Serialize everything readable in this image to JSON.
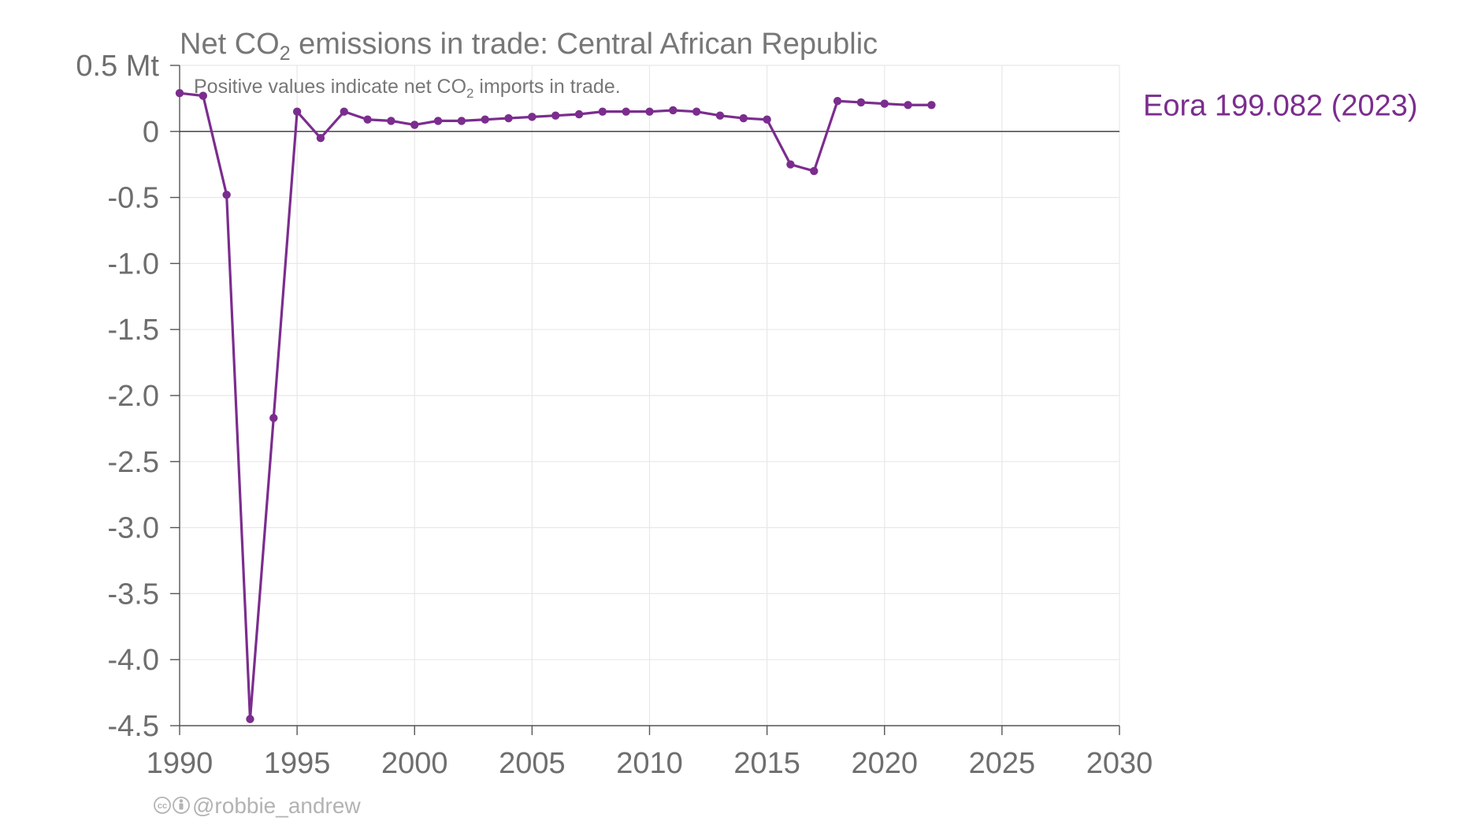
{
  "title": {
    "prefix": "Net CO",
    "subscript": "2",
    "suffix": " emissions in trade: Central African Republic"
  },
  "subtitle": {
    "prefix": "Positive values indicate net CO",
    "subscript": "2",
    "suffix": " imports in trade."
  },
  "credit": {
    "handle": "@robbie_andrew",
    "icons": [
      "cc-license-icon",
      "attribution-icon"
    ]
  },
  "colors": {
    "series": "#7b2d8e",
    "zero_line": "#333333",
    "grid": "#e8e8e8",
    "text": "#777777"
  },
  "chart_data": {
    "type": "line",
    "title": "Net CO2 emissions in trade: Central African Republic",
    "subtitle": "Positive values indicate net CO2 imports in trade.",
    "xlabel": "",
    "ylabel": "",
    "y_unit_label": "Mt",
    "xlim": [
      1990,
      2030
    ],
    "ylim": [
      -4.5,
      0.5
    ],
    "x_ticks": [
      1990,
      1995,
      2000,
      2005,
      2010,
      2015,
      2020,
      2025,
      2030
    ],
    "y_ticks": [
      0.5,
      0,
      -0.5,
      -1.0,
      -1.5,
      -2.0,
      -2.5,
      -3.0,
      -3.5,
      -4.0,
      -4.5
    ],
    "y_tick_labels": [
      "0.5 Mt",
      "0",
      "-0.5",
      "-1.0",
      "-1.5",
      "-2.0",
      "-2.5",
      "-3.0",
      "-3.5",
      "-4.0",
      "-4.5"
    ],
    "x_tick_labels": [
      "1990",
      "1995",
      "2000",
      "2005",
      "2010",
      "2015",
      "2020",
      "2025",
      "2030"
    ],
    "grid": true,
    "legend": "none",
    "series": [
      {
        "name": "Eora 199.082 (2023)",
        "color": "#7b2d8e",
        "markers": true,
        "x": [
          1990,
          1991,
          1992,
          1993,
          1994,
          1995,
          1996,
          1997,
          1998,
          1999,
          2000,
          2001,
          2002,
          2003,
          2004,
          2005,
          2006,
          2007,
          2008,
          2009,
          2010,
          2011,
          2012,
          2013,
          2014,
          2015,
          2016,
          2017,
          2018,
          2019,
          2020,
          2021,
          2022
        ],
        "y": [
          0.29,
          0.27,
          -0.48,
          -4.45,
          -2.17,
          0.15,
          -0.05,
          0.15,
          0.09,
          0.08,
          0.05,
          0.08,
          0.08,
          0.09,
          0.1,
          0.11,
          0.12,
          0.13,
          0.15,
          0.15,
          0.15,
          0.16,
          0.15,
          0.12,
          0.1,
          0.09,
          -0.25,
          -0.3,
          0.23,
          0.22,
          0.21,
          0.2,
          0.2
        ]
      }
    ]
  }
}
